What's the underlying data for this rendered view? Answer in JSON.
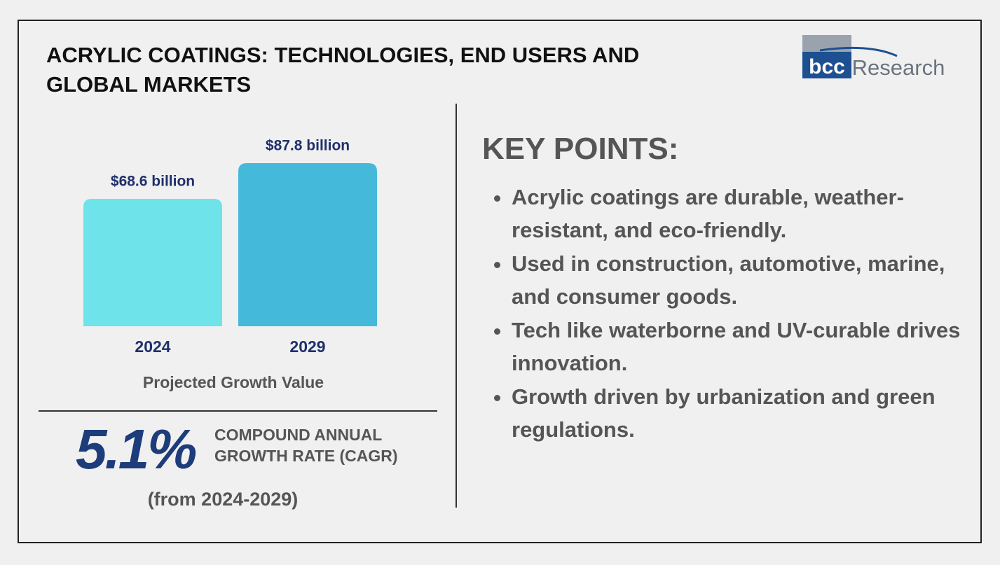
{
  "header": {
    "title": "ACRYLIC COATINGS: TECHNOLOGIES, END USERS AND GLOBAL MARKETS",
    "logo_mark": "bcc",
    "logo_text": "Research"
  },
  "chart_data": {
    "type": "bar",
    "categories": [
      "2024",
      "2029"
    ],
    "values": [
      68.6,
      87.8
    ],
    "value_labels": [
      "$68.6 billion",
      "$87.8 billion"
    ],
    "colors": [
      "#6ee3ea",
      "#45b9d9"
    ],
    "xlabel": "Projected Growth Value"
  },
  "cagr": {
    "value": "5.1%",
    "label": "COMPOUND ANNUAL GROWTH RATE (CAGR)",
    "period": "(from 2024-2029)"
  },
  "key_points": {
    "title": "KEY POINTS:",
    "items": [
      "Acrylic coatings are durable, weather-resistant, and eco-friendly.",
      "Used in construction, automotive, marine, and consumer goods.",
      "Tech like waterborne and UV-curable drives innovation.",
      "Growth driven by urbanization and green regulations."
    ]
  }
}
